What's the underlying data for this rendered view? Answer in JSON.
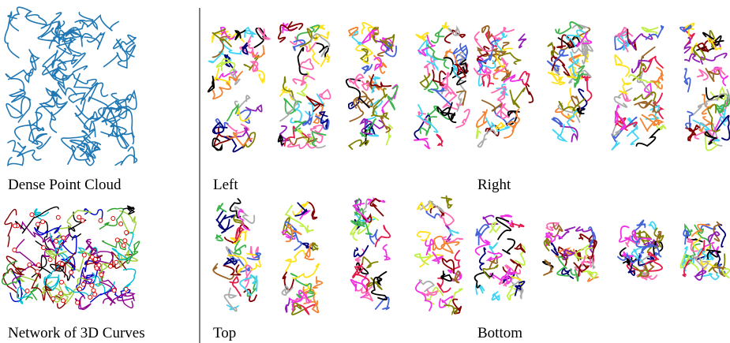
{
  "left_panel": {
    "captions": [
      "Dense Point Cloud",
      "Network of 3D Curves"
    ]
  },
  "right_panel": {
    "rows": [
      {
        "labels": [
          "Left",
          "Right"
        ]
      },
      {
        "labels": [
          "Top",
          "Bottom"
        ]
      }
    ]
  }
}
